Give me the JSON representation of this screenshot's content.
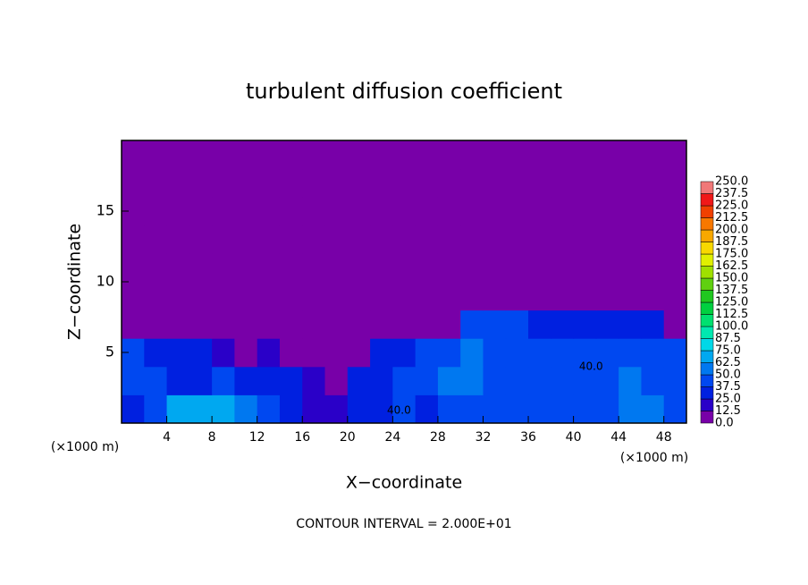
{
  "chart_data": {
    "type": "contour",
    "title": "turbulent diffusion coefficient",
    "x_label": "X−coordinate",
    "y_label": "Z−coordinate",
    "x_unit": "(×1000 m)",
    "x_unit_right": "(×1000 m)",
    "footer": "CONTOUR INTERVAL = 2.000E+01",
    "annotations": [
      "40.0",
      "40.0"
    ],
    "xlim": [
      0,
      50
    ],
    "ylim": [
      0,
      20
    ],
    "xticks": [
      4,
      8,
      12,
      16,
      20,
      24,
      28,
      32,
      36,
      40,
      44,
      48
    ],
    "yticks": [
      5,
      10,
      15
    ],
    "x": [
      1,
      3,
      5,
      7,
      9,
      11,
      13,
      15,
      17,
      19,
      21,
      23,
      25,
      27,
      29,
      31,
      33,
      35,
      37,
      39,
      41,
      43,
      45,
      47,
      49
    ],
    "z": [
      1,
      3,
      5,
      7,
      9,
      11,
      13,
      15,
      17,
      19
    ],
    "values": [
      [
        35,
        45,
        70,
        70,
        65,
        55,
        45,
        35,
        20,
        15,
        30,
        35,
        40,
        35,
        40,
        45,
        45,
        40,
        40,
        40,
        40,
        40,
        55,
        50,
        40
      ],
      [
        40,
        40,
        35,
        35,
        40,
        35,
        30,
        30,
        15,
        5,
        30,
        35,
        40,
        45,
        55,
        50,
        45,
        45,
        40,
        40,
        40,
        40,
        50,
        45,
        40
      ],
      [
        40,
        35,
        35,
        30,
        20,
        10,
        15,
        5,
        0,
        0,
        0,
        25,
        30,
        40,
        45,
        50,
        45,
        40,
        40,
        45,
        40,
        40,
        45,
        40,
        40
      ],
      [
        0,
        0,
        0,
        0,
        0,
        0,
        0,
        0,
        0,
        0,
        0,
        0,
        0,
        0,
        0,
        40,
        45,
        40,
        35,
        30,
        30,
        25,
        30,
        30,
        0
      ],
      [
        0,
        0,
        0,
        0,
        0,
        0,
        0,
        0,
        0,
        0,
        0,
        0,
        0,
        0,
        0,
        10,
        10,
        5,
        0,
        0,
        0,
        0,
        0,
        0,
        0
      ],
      [
        0,
        0,
        0,
        0,
        0,
        0,
        0,
        0,
        0,
        0,
        0,
        0,
        0,
        0,
        0,
        0,
        0,
        0,
        0,
        0,
        0,
        0,
        0,
        0,
        0
      ],
      [
        0,
        0,
        0,
        0,
        0,
        0,
        0,
        0,
        0,
        0,
        0,
        0,
        0,
        0,
        0,
        0,
        0,
        0,
        0,
        0,
        0,
        0,
        0,
        0,
        0
      ],
      [
        0,
        0,
        0,
        0,
        0,
        0,
        0,
        0,
        0,
        0,
        0,
        0,
        0,
        0,
        0,
        0,
        0,
        0,
        0,
        0,
        0,
        0,
        0,
        0,
        0
      ],
      [
        0,
        0,
        0,
        0,
        0,
        0,
        0,
        0,
        0,
        0,
        0,
        0,
        0,
        0,
        0,
        0,
        0,
        0,
        0,
        0,
        0,
        0,
        0,
        0,
        0
      ],
      [
        0,
        0,
        0,
        0,
        0,
        0,
        0,
        0,
        0,
        0,
        0,
        0,
        0,
        0,
        0,
        0,
        0,
        0,
        0,
        0,
        0,
        0,
        0,
        0,
        0
      ]
    ],
    "levels": [
      {
        "value": 0,
        "label": "0.0"
      },
      {
        "value": 12.5,
        "label": "12.5"
      },
      {
        "value": 25,
        "label": "25.0"
      },
      {
        "value": 37.5,
        "label": "37.5"
      },
      {
        "value": 50,
        "label": "50.0"
      },
      {
        "value": 62.5,
        "label": "62.5"
      },
      {
        "value": 75,
        "label": "75.0"
      },
      {
        "value": 87.5,
        "label": "87.5"
      },
      {
        "value": 100,
        "label": "100.0"
      },
      {
        "value": 112.5,
        "label": "112.5"
      },
      {
        "value": 125,
        "label": "125.0"
      },
      {
        "value": 137.5,
        "label": "137.5"
      },
      {
        "value": 150,
        "label": "150.0"
      },
      {
        "value": 162.5,
        "label": "162.5"
      },
      {
        "value": 175,
        "label": "175.0"
      },
      {
        "value": 187.5,
        "label": "187.5"
      },
      {
        "value": 200,
        "label": "200.0"
      },
      {
        "value": 212.5,
        "label": "212.5"
      },
      {
        "value": 225,
        "label": "225.0"
      },
      {
        "value": 237.5,
        "label": "237.5"
      },
      {
        "value": 250,
        "label": "250.0"
      }
    ],
    "colors": [
      "#7800a8",
      "#2a00c8",
      "#0020e0",
      "#0048f0",
      "#0078f0",
      "#00a8f0",
      "#00d8e8",
      "#00e8b0",
      "#00e070",
      "#00d040",
      "#20c820",
      "#60d010",
      "#a0e000",
      "#e0f000",
      "#f8d800",
      "#f8a800",
      "#f87800",
      "#f04000",
      "#f01818",
      "#f07878"
    ]
  }
}
